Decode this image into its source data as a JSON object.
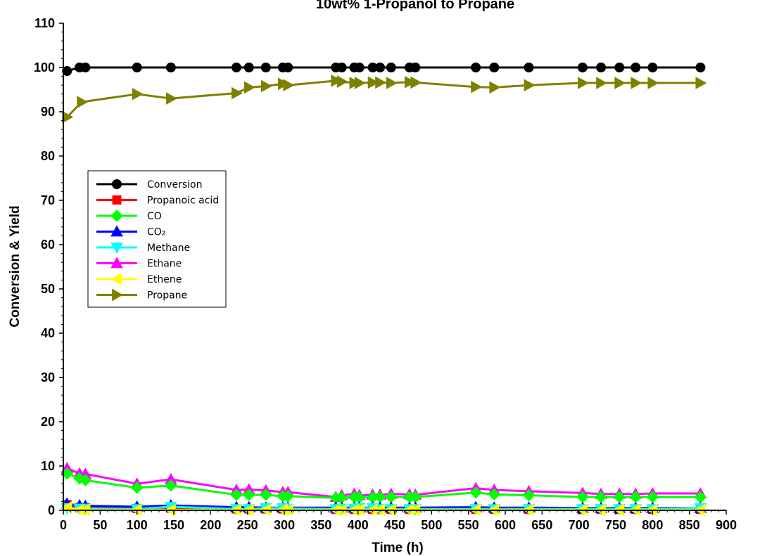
{
  "chart_data": {
    "type": "line",
    "title": "10wt% 1-Propanol to Propane",
    "xlabel": "Time (h)",
    "ylabel": "Conversion & Yield",
    "xlim": [
      0,
      900
    ],
    "ylim": [
      0,
      110
    ],
    "x_ticks": [
      0,
      50,
      100,
      150,
      200,
      250,
      300,
      350,
      400,
      450,
      500,
      550,
      600,
      650,
      700,
      750,
      800,
      850,
      900
    ],
    "y_ticks": [
      0,
      10,
      20,
      30,
      40,
      50,
      60,
      70,
      80,
      90,
      100,
      110
    ],
    "x_tick_labels": [
      "0",
      "50",
      "100",
      "150",
      "200",
      "250",
      "300",
      "350",
      "400",
      "450",
      "500",
      "550",
      "600",
      "650",
      "700",
      "750",
      "800",
      "850",
      "900"
    ],
    "y_tick_labels": [
      "0",
      "10",
      "20",
      "30",
      "40",
      "50",
      "60",
      "70",
      "80",
      "90",
      "100",
      "110"
    ],
    "grid": false,
    "legend_position": "left-middle",
    "series": [
      {
        "name": "Conversion",
        "color": "#000000",
        "marker": "circle",
        "x": [
          5,
          22,
          30,
          100,
          146,
          235,
          252,
          275,
          298,
          305,
          370,
          378,
          395,
          402,
          420,
          430,
          445,
          470,
          478,
          560,
          585,
          632,
          705,
          730,
          755,
          777,
          800,
          865
        ],
        "y": [
          99.2,
          100,
          100,
          100,
          100,
          100,
          100,
          100,
          100,
          100,
          100,
          100,
          100,
          100,
          100,
          100,
          100,
          100,
          100,
          100,
          100,
          100,
          100,
          100,
          100,
          100,
          100,
          100
        ]
      },
      {
        "name": "Propanoic acid",
        "color": "#ff0000",
        "marker": "square",
        "x": [
          5,
          22,
          30,
          100,
          146,
          235,
          252,
          275,
          298,
          305,
          370,
          378,
          395,
          402,
          420,
          430,
          445,
          470,
          478,
          560,
          585,
          632,
          705,
          730,
          755,
          777,
          800,
          865
        ],
        "y": [
          1.3,
          0.6,
          0.6,
          0.4,
          0.5,
          0.3,
          0.3,
          0.3,
          0.3,
          0.3,
          0.2,
          0.2,
          0.2,
          0.2,
          0.2,
          0.2,
          0.2,
          0.2,
          0.2,
          0.2,
          0.2,
          0.2,
          0.2,
          0.2,
          0.2,
          0.2,
          0.2,
          0.2
        ]
      },
      {
        "name": "CO",
        "color": "#00ff00",
        "marker": "diamond",
        "x": [
          5,
          22,
          30,
          100,
          146,
          235,
          252,
          275,
          298,
          305,
          370,
          378,
          395,
          402,
          420,
          430,
          445,
          470,
          478,
          560,
          585,
          632,
          705,
          730,
          755,
          777,
          800,
          865
        ],
        "y": [
          8.3,
          7.2,
          6.8,
          5.1,
          5.6,
          3.5,
          3.5,
          3.5,
          3.2,
          3.2,
          2.8,
          2.9,
          3.0,
          2.9,
          2.9,
          3.0,
          3.0,
          3.0,
          3.0,
          4.0,
          3.6,
          3.4,
          3.0,
          3.0,
          3.0,
          3.0,
          3.0,
          3.0
        ]
      },
      {
        "name": "CO₂",
        "color": "#0000ff",
        "marker": "triangle-up",
        "x": [
          5,
          22,
          30,
          100,
          146,
          235,
          252,
          275,
          298,
          305,
          370,
          378,
          395,
          402,
          420,
          430,
          445,
          470,
          478,
          560,
          585,
          632,
          705,
          730,
          755,
          777,
          800,
          865
        ],
        "y": [
          1.5,
          1.1,
          1.0,
          0.8,
          1.1,
          0.7,
          0.7,
          0.6,
          0.6,
          0.6,
          0.6,
          0.6,
          0.6,
          0.6,
          0.6,
          0.6,
          0.6,
          0.6,
          0.6,
          0.7,
          0.6,
          0.6,
          0.5,
          0.5,
          0.5,
          0.5,
          0.5,
          0.5
        ]
      },
      {
        "name": "Methane",
        "color": "#00ffff",
        "marker": "triangle-down",
        "x": [
          5,
          22,
          30,
          100,
          146,
          235,
          252,
          275,
          298,
          305,
          370,
          378,
          395,
          402,
          420,
          430,
          445,
          470,
          478,
          560,
          585,
          632,
          705,
          730,
          755,
          777,
          800,
          865
        ],
        "y": [
          0.5,
          0.4,
          0.4,
          0.3,
          0.8,
          0.3,
          0.3,
          0.5,
          0.5,
          0.4,
          0.3,
          0.4,
          0.4,
          0.5,
          0.5,
          0.3,
          0.3,
          0.3,
          0.3,
          0.3,
          0.3,
          0.3,
          0.3,
          0.3,
          0.3,
          0.3,
          0.3,
          0.5
        ]
      },
      {
        "name": "Ethane",
        "color": "#ff00ff",
        "marker": "triangle-up",
        "x": [
          5,
          22,
          30,
          100,
          146,
          235,
          252,
          275,
          298,
          305,
          370,
          378,
          395,
          402,
          420,
          430,
          445,
          470,
          478,
          560,
          585,
          632,
          705,
          730,
          755,
          777,
          800,
          865
        ],
        "y": [
          9.5,
          8.3,
          8.2,
          6.0,
          7.0,
          4.6,
          4.7,
          4.5,
          4.1,
          4.1,
          3.0,
          3.4,
          3.7,
          3.4,
          3.5,
          3.5,
          3.7,
          3.6,
          3.5,
          5.0,
          4.6,
          4.3,
          3.9,
          3.7,
          3.7,
          3.7,
          3.8,
          3.8
        ]
      },
      {
        "name": "Ethene",
        "color": "#ffff00",
        "marker": "triangle-left",
        "x": [
          5,
          22,
          30,
          100,
          146,
          235,
          252,
          275,
          298,
          305,
          370,
          378,
          395,
          402,
          420,
          430,
          445,
          470,
          478,
          560,
          585,
          632,
          705,
          730,
          755,
          777,
          800,
          865
        ],
        "y": [
          0.6,
          0.1,
          0.1,
          0.1,
          0.1,
          0.1,
          0.1,
          0.1,
          0.1,
          0.1,
          0.1,
          0.1,
          0.1,
          0.1,
          0.1,
          0.1,
          0.1,
          0.1,
          0.1,
          0.1,
          0.1,
          0.1,
          0.1,
          0.1,
          0.1,
          0.1,
          0.1,
          0.1
        ]
      },
      {
        "name": "Propane",
        "color": "#808000",
        "marker": "triangle-right",
        "x": [
          5,
          25,
          100,
          146,
          235,
          252,
          275,
          298,
          305,
          370,
          378,
          395,
          402,
          420,
          430,
          445,
          470,
          478,
          560,
          585,
          632,
          705,
          730,
          755,
          777,
          800,
          865
        ],
        "y": [
          88.8,
          92.2,
          94.0,
          93.0,
          94.2,
          95.5,
          95.8,
          96.3,
          96.0,
          97.0,
          96.8,
          96.5,
          96.5,
          96.6,
          96.6,
          96.5,
          96.7,
          96.6,
          95.6,
          95.5,
          96.0,
          96.5,
          96.5,
          96.5,
          96.5,
          96.5,
          96.5
        ]
      }
    ]
  }
}
